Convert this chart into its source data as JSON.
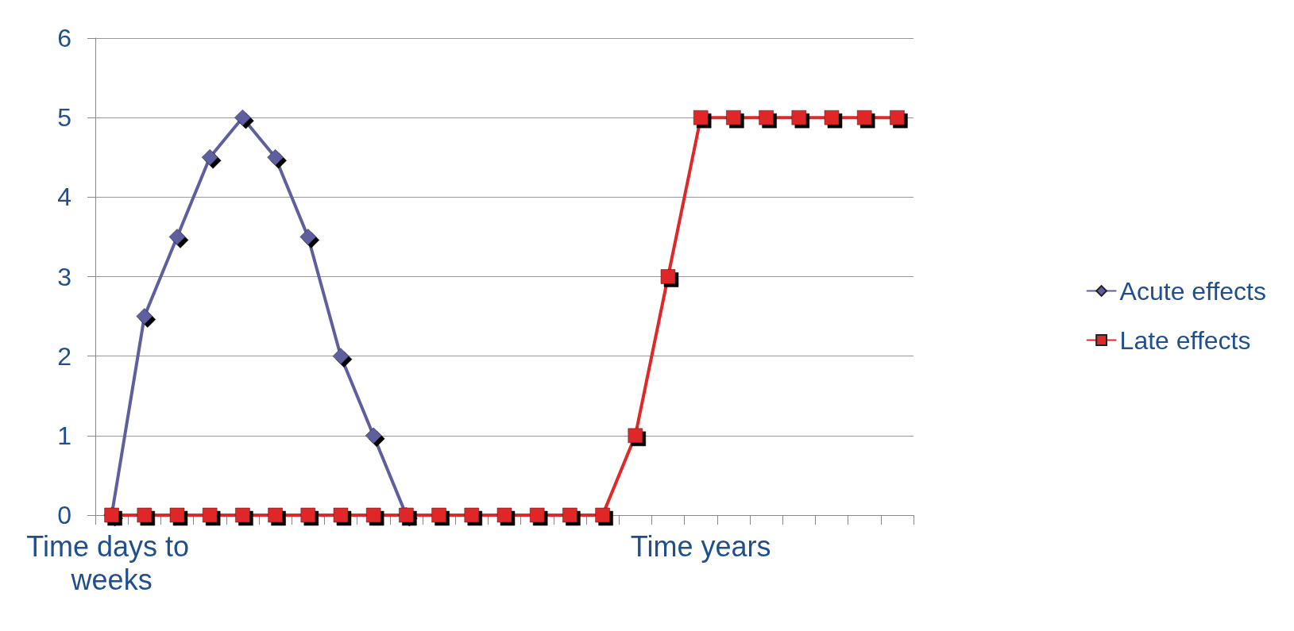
{
  "chart_data": {
    "type": "line",
    "categories": [
      "Time days to weeks",
      null,
      null,
      null,
      null,
      null,
      null,
      null,
      null,
      null,
      null,
      null,
      null,
      null,
      null,
      null,
      null,
      null,
      "Time years",
      null,
      null,
      null,
      null,
      null,
      null
    ],
    "series": [
      {
        "name": "Acute effects",
        "color": "#5f5f9f",
        "marker": "diamond",
        "values": [
          0,
          2.5,
          3.5,
          4.5,
          5,
          4.5,
          3.5,
          2,
          1,
          0,
          null,
          null,
          null,
          null,
          null,
          null,
          null,
          null,
          null,
          null,
          null,
          null,
          null,
          null,
          null
        ]
      },
      {
        "name": "Late effects",
        "color": "#e02828",
        "marker": "square",
        "values": [
          0,
          0,
          0,
          0,
          0,
          0,
          0,
          0,
          0,
          0,
          0,
          0,
          0,
          0,
          0,
          0,
          1,
          3,
          5,
          5,
          5,
          5,
          5,
          5,
          5
        ]
      }
    ],
    "ylim": [
      0,
      6
    ],
    "yticks": [
      0,
      1,
      2,
      3,
      4,
      5,
      6
    ],
    "grid": "y",
    "legend": "right",
    "line_style": "solid"
  }
}
